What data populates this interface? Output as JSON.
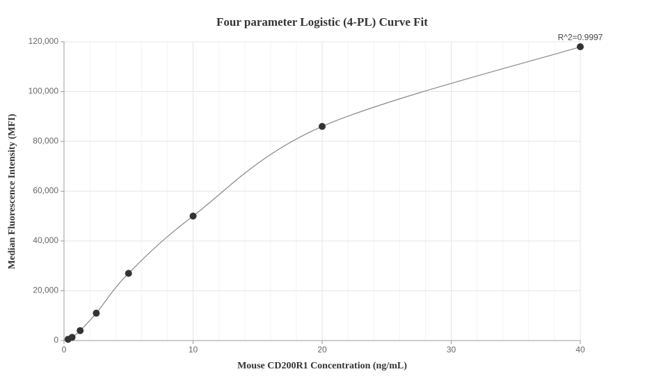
{
  "chart_data": {
    "type": "scatter",
    "title": "Four parameter Logistic (4-PL) Curve Fit",
    "xlabel": "Mouse CD200R1 Concentration (ng/mL)",
    "ylabel": "Median Fluorescence Intensity (MFI)",
    "annotation": "R^2=0.9997",
    "x": [
      0.3125,
      0.625,
      1.25,
      2.5,
      5,
      10,
      20,
      40
    ],
    "values": [
      500,
      1300,
      4000,
      11000,
      27000,
      50000,
      86000,
      118000
    ],
    "color": "#333333",
    "line_color": "#888888",
    "line": true,
    "xlim": [
      0,
      40
    ],
    "xticks": [
      0,
      10,
      20,
      30,
      40
    ],
    "ylim": [
      0,
      120000
    ],
    "yticks": [
      0,
      {
        "value": 20000,
        "label": "20,000"
      },
      {
        "value": 40000,
        "label": "40,000"
      },
      {
        "value": 60000,
        "label": "60,000"
      },
      {
        "value": 80000,
        "label": "80,000"
      },
      {
        "value": 100000,
        "label": "100,000"
      },
      {
        "value": 120000,
        "label": "120,000"
      }
    ],
    "grid": true
  }
}
